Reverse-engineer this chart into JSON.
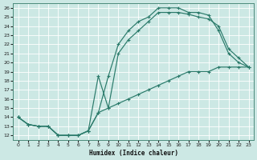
{
  "xlabel": "Humidex (Indice chaleur)",
  "bg_color": "#cce8e4",
  "grid_color": "#b0d8d4",
  "line_color": "#2a7a6a",
  "xlim": [
    -0.5,
    23.5
  ],
  "ylim": [
    11.5,
    26.5
  ],
  "xticks": [
    0,
    1,
    2,
    3,
    4,
    5,
    6,
    7,
    8,
    9,
    10,
    11,
    12,
    13,
    14,
    15,
    16,
    17,
    18,
    19,
    20,
    21,
    22,
    23
  ],
  "yticks": [
    12,
    13,
    14,
    15,
    16,
    17,
    18,
    19,
    20,
    21,
    22,
    23,
    24,
    25,
    26
  ],
  "curve1_x": [
    0,
    1,
    2,
    3,
    4,
    5,
    6,
    7,
    8,
    9,
    10,
    11,
    12,
    13,
    14,
    15,
    16,
    17,
    18,
    19,
    20,
    21,
    22,
    23
  ],
  "curve1_y": [
    14,
    13.2,
    13,
    13,
    12,
    12,
    12,
    12.5,
    14.5,
    18.5,
    22,
    23.5,
    24.5,
    25,
    26,
    26,
    26,
    25.5,
    25.5,
    25.2,
    23.5,
    21,
    20,
    19.5
  ],
  "curve2_x": [
    0,
    1,
    2,
    3,
    4,
    5,
    6,
    7,
    8,
    9,
    10,
    11,
    12,
    13,
    14,
    15,
    16,
    17,
    18,
    19,
    20,
    21,
    22,
    23
  ],
  "curve2_y": [
    14,
    13.2,
    13,
    13,
    12,
    12,
    12,
    12.5,
    18.5,
    15,
    21,
    22.5,
    23.5,
    24.5,
    25.5,
    25.5,
    25.5,
    25.3,
    25,
    24.8,
    24,
    21.5,
    20.5,
    19.5
  ],
  "curve3_x": [
    0,
    1,
    2,
    3,
    4,
    5,
    6,
    7,
    8,
    9,
    10,
    11,
    12,
    13,
    14,
    15,
    16,
    17,
    18,
    19,
    20,
    21,
    22,
    23
  ],
  "curve3_y": [
    14,
    13.2,
    13,
    13,
    12,
    12,
    12,
    12.5,
    14.5,
    15,
    15.5,
    16,
    16.5,
    17,
    17.5,
    18,
    18.5,
    19,
    19,
    19,
    19.5,
    19.5,
    19.5,
    19.5
  ]
}
